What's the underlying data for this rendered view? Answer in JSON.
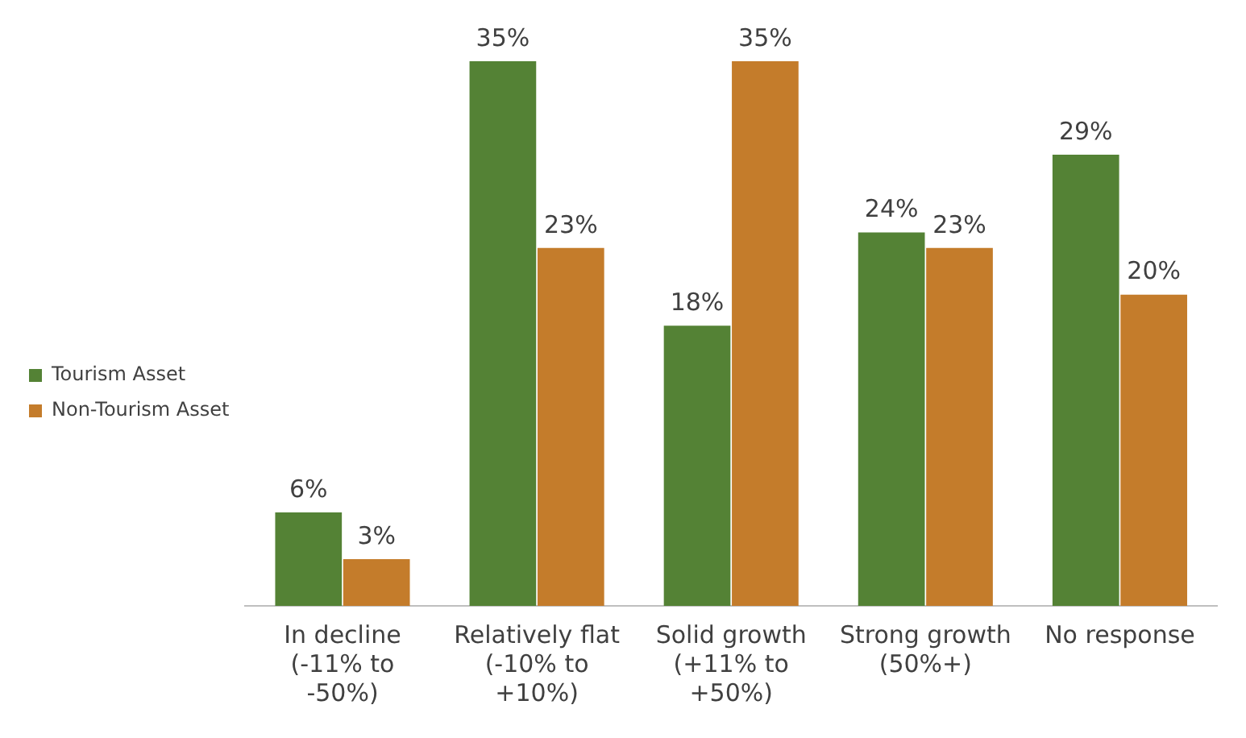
{
  "chart_data": {
    "type": "bar",
    "categories": [
      "In decline (-11% to -50%)",
      "Relatively flat (-10% to +10%)",
      "Solid growth (+11% to +50%)",
      "Strong growth (50%+)",
      "No response"
    ],
    "series": [
      {
        "name": "Tourism Asset",
        "color": "#548235",
        "values": [
          6,
          35,
          18,
          24,
          29
        ],
        "value_labels": [
          "6%",
          "35%",
          "18%",
          "24%",
          "29%"
        ]
      },
      {
        "name": "Non-Tourism Asset",
        "color": "#c47c2b",
        "values": [
          3,
          23,
          35,
          23,
          20
        ],
        "value_labels": [
          "3%",
          "23%",
          "35%",
          "23%",
          "20%"
        ]
      }
    ],
    "legend": "left",
    "grid": false,
    "tick_labels": "x"
  }
}
